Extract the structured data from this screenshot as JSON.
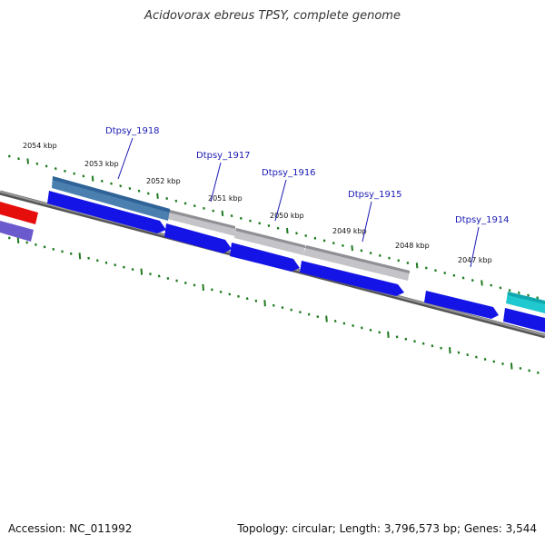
{
  "title": "Acidovorax ebreus TPSY, complete genome",
  "footer": {
    "accession": "Accession: NC_011992",
    "summary": "Topology: circular; Length: 3,796,573 bp; Genes: 3,544"
  },
  "colors": {
    "background": "#ffffff",
    "tick": "#1f7a1f",
    "backbone": "#8a8a8a",
    "cds_forward": "#1414e6",
    "cds_reverse_purple": "#6a5acd",
    "gene_grey": "#c4c4c8",
    "gene_steelblue": "#4a7fb0",
    "gene_red": "#e60d0d",
    "gene_cyan": "#20c8d0",
    "label": "#1a1ab4"
  },
  "kbp_labels": [
    "2054 kbp",
    "2053 kbp",
    "2052 kbp",
    "2051 kbp",
    "2050 kbp",
    "2049 kbp",
    "2048 kbp",
    "2047 kbp"
  ],
  "gene_labels": [
    "Dtpsy_1918",
    "Dtpsy_1917",
    "Dtpsy_1916",
    "Dtpsy_1915",
    "Dtpsy_1914"
  ]
}
